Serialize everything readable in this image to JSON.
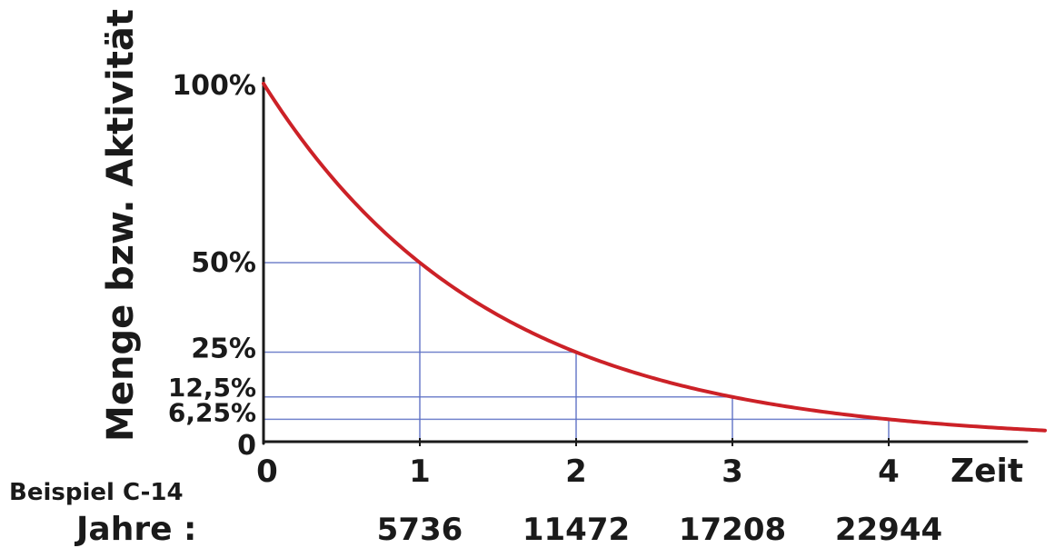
{
  "chart_data": {
    "type": "line",
    "ylabel": "Menge bzw. Aktivität",
    "xlabel": "Zeit",
    "xlim": [
      0,
      4.8
    ],
    "ylim": [
      0,
      100
    ],
    "x_ticks": [
      "0",
      "1",
      "2",
      "3",
      "4"
    ],
    "y_ticks": [
      {
        "value": 100,
        "label": "100%"
      },
      {
        "value": 50,
        "label": "50%"
      },
      {
        "value": 25,
        "label": "25%"
      },
      {
        "value": 12.5,
        "label": "12,5%"
      },
      {
        "value": 6.25,
        "label": "6,25%"
      },
      {
        "value": 0,
        "label": "0"
      }
    ],
    "series": [
      {
        "values": [
          100,
          50,
          25,
          12.5,
          6.25
        ],
        "x": [
          0,
          1,
          2,
          3,
          4
        ],
        "curve": "exponential-decay",
        "color": "#cc2127"
      }
    ],
    "example": {
      "title": "Beispiel C-14",
      "row_label": "Jahre :",
      "years": [
        "5736",
        "11472",
        "17208",
        "22944"
      ]
    },
    "guide_color": "#5b6fc4",
    "axis_color": "#1a1a1a"
  }
}
